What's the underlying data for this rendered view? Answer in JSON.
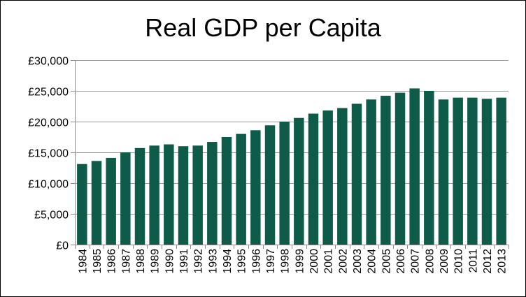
{
  "chart_data": {
    "type": "bar",
    "title": "Real GDP per Capita",
    "xlabel": "",
    "ylabel": "",
    "ylim": [
      0,
      30000
    ],
    "grid": true,
    "legend": "none",
    "bar_color": "#0f5b4a",
    "gridline_color": "#9a9a9a",
    "y_ticks": [
      0,
      5000,
      10000,
      15000,
      20000,
      25000,
      30000
    ],
    "y_tick_labels": [
      "£0",
      "£5,000",
      "£10,000",
      "£15,000",
      "£20,000",
      "£25,000",
      "£30,000"
    ],
    "categories": [
      "1984",
      "1985",
      "1986",
      "1987",
      "1988",
      "1989",
      "1990",
      "1991",
      "1992",
      "1993",
      "1994",
      "1995",
      "1996",
      "1997",
      "1998",
      "1999",
      "2000",
      "2001",
      "2002",
      "2003",
      "2004",
      "2005",
      "2006",
      "2007",
      "2008",
      "2009",
      "2010",
      "2011",
      "2012",
      "2013"
    ],
    "values": [
      13100,
      13600,
      14100,
      15000,
      15700,
      16100,
      16300,
      16000,
      16100,
      16700,
      17500,
      18000,
      18600,
      19400,
      20000,
      20600,
      21300,
      21800,
      22200,
      22900,
      23600,
      24200,
      24700,
      25400,
      25000,
      23600,
      23900,
      23900,
      23700,
      23900
    ]
  }
}
